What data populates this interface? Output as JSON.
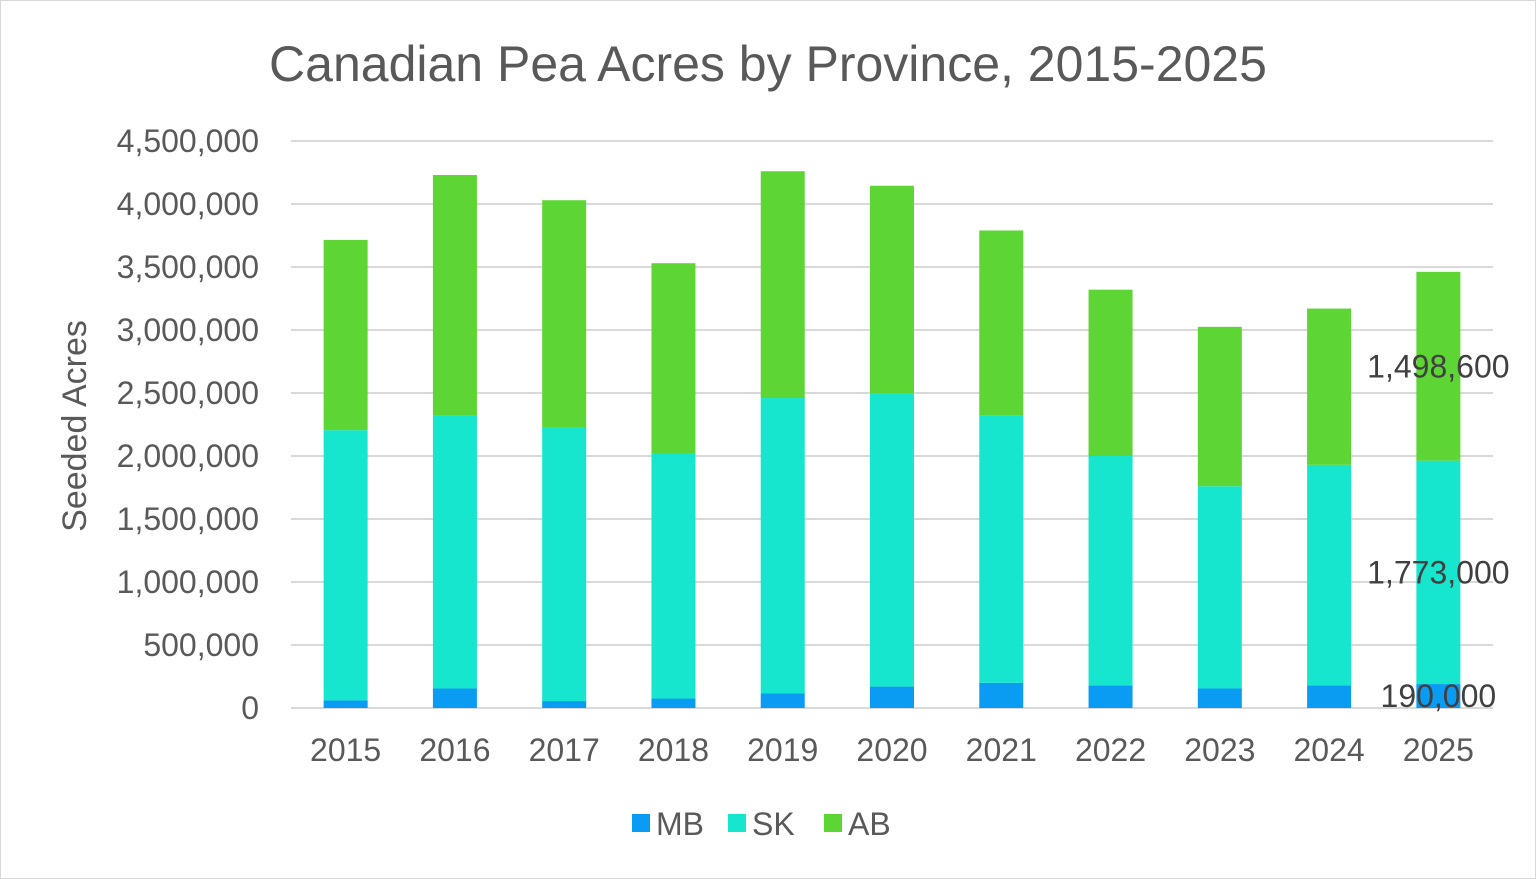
{
  "chart_data": {
    "type": "bar",
    "stacked": true,
    "title": "Canadian Pea Acres by Province, 2015-2025",
    "ylabel": "Seeded Acres",
    "xlabel": "",
    "ylim": [
      0,
      4500000
    ],
    "yticks": [
      0,
      500000,
      1000000,
      1500000,
      2000000,
      2500000,
      3000000,
      3500000,
      4000000,
      4500000
    ],
    "ytick_labels": [
      "0",
      "500,000",
      "1,000,000",
      "1,500,000",
      "2,000,000",
      "2,500,000",
      "3,000,000",
      "3,500,000",
      "4,000,000",
      "4,500,000"
    ],
    "grid": true,
    "legend_position": "bottom",
    "categories": [
      "2015",
      "2016",
      "2017",
      "2018",
      "2019",
      "2020",
      "2021",
      "2022",
      "2023",
      "2024",
      "2025"
    ],
    "series": [
      {
        "name": "MB",
        "color": "#0a9bf3",
        "values": [
          60000,
          155000,
          55000,
          75000,
          115000,
          170000,
          200000,
          180000,
          155000,
          180000,
          190000
        ]
      },
      {
        "name": "SK",
        "color": "#17e6cf",
        "values": [
          2145000,
          2170000,
          2175000,
          1945000,
          2345000,
          2330000,
          2120000,
          1820000,
          1605000,
          1750000,
          1773000
        ]
      },
      {
        "name": "AB",
        "color": "#5dd534",
        "values": [
          1510000,
          1905000,
          1800000,
          1510000,
          1800000,
          1645000,
          1470000,
          1320000,
          1265000,
          1240000,
          1498600
        ]
      }
    ],
    "data_labels": [
      {
        "series": "AB",
        "category": "2025",
        "text": "1,498,600"
      },
      {
        "series": "SK",
        "category": "2025",
        "text": "1,773,000"
      },
      {
        "series": "MB",
        "category": "2025",
        "text": "190,000"
      }
    ]
  }
}
